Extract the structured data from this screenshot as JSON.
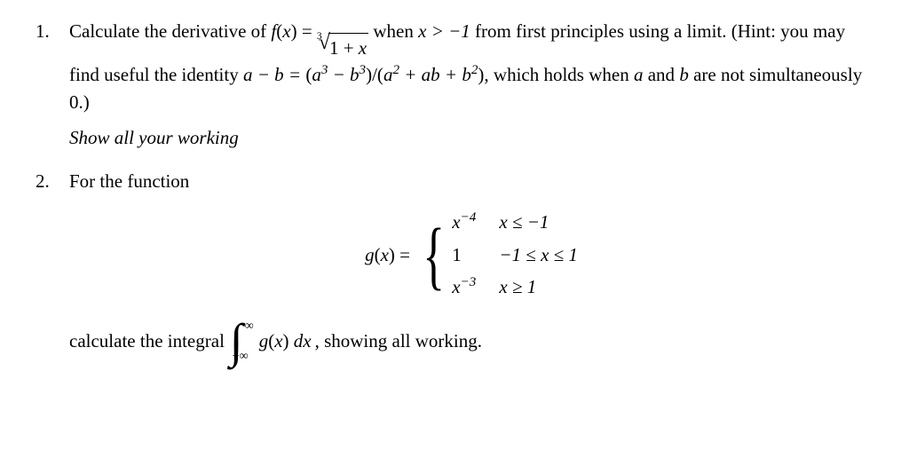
{
  "p1": {
    "number": "1.",
    "text_a": "Calculate the derivative of ",
    "fx": "f",
    "x_var": "x",
    "eq": " = ",
    "radidx": "3",
    "surd": "√",
    "radicand": "1 + x",
    "text_b": " when ",
    "cond": "x > −1",
    "text_c": " from first principles using a limit. (Hint: you may find useful the identity ",
    "ident_lhs": "a − b =",
    "ident_rhs_open": "(a",
    "sup3a": "3",
    "minus": " − b",
    "sup3b": "3",
    "ident_rhs_mid": ")/(a",
    "sup2a": "2",
    "plusab": " + ab + b",
    "sup2b": "2",
    "ident_close": "),",
    "text_d": " which holds when ",
    "a_and_b": "a",
    "and": " and ",
    "b": "b",
    "text_e": " are not simultaneously 0.)",
    "instruction": "Show all your working"
  },
  "p2": {
    "number": "2.",
    "lead": "For the function",
    "gxlabel": "g(x) = ",
    "cases": [
      {
        "expr_base": "x",
        "expr_sup": "−4",
        "cond": "x ≤ −1"
      },
      {
        "expr_base": "1",
        "expr_sup": "",
        "cond": "−1 ≤ x ≤ 1"
      },
      {
        "expr_base": "x",
        "expr_sup": "−3",
        "cond": "x ≥ 1"
      }
    ],
    "line2a": "calculate the integral ",
    "int_upper": "∞",
    "int_lower": "−∞",
    "integrand_g": "g",
    "integrand_x": "x",
    "dx": " dx",
    "line2b": ", showing all working."
  }
}
